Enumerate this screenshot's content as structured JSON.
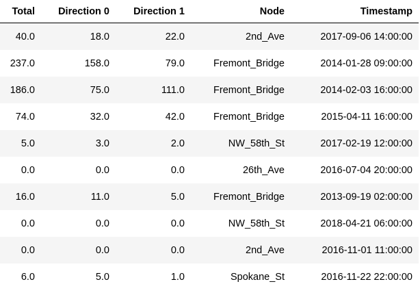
{
  "table": {
    "columns": [
      "Total",
      "Direction 0",
      "Direction 1",
      "Node",
      "Timestamp"
    ],
    "rows": [
      [
        "40.0",
        "18.0",
        "22.0",
        "2nd_Ave",
        "2017-09-06 14:00:00"
      ],
      [
        "237.0",
        "158.0",
        "79.0",
        "Fremont_Bridge",
        "2014-01-28 09:00:00"
      ],
      [
        "186.0",
        "75.0",
        "111.0",
        "Fremont_Bridge",
        "2014-02-03 16:00:00"
      ],
      [
        "74.0",
        "32.0",
        "42.0",
        "Fremont_Bridge",
        "2015-04-11 16:00:00"
      ],
      [
        "5.0",
        "3.0",
        "2.0",
        "NW_58th_St",
        "2017-02-19 12:00:00"
      ],
      [
        "0.0",
        "0.0",
        "0.0",
        "26th_Ave",
        "2016-07-04 20:00:00"
      ],
      [
        "16.0",
        "11.0",
        "5.0",
        "Fremont_Bridge",
        "2013-09-19 02:00:00"
      ],
      [
        "0.0",
        "0.0",
        "0.0",
        "NW_58th_St",
        "2018-04-21 06:00:00"
      ],
      [
        "0.0",
        "0.0",
        "0.0",
        "2nd_Ave",
        "2016-11-01 11:00:00"
      ],
      [
        "6.0",
        "5.0",
        "1.0",
        "Spokane_St",
        "2016-11-22 22:00:00"
      ]
    ]
  },
  "colors": {
    "stripe": "#f5f5f5",
    "background": "#ffffff",
    "text": "#000000"
  }
}
